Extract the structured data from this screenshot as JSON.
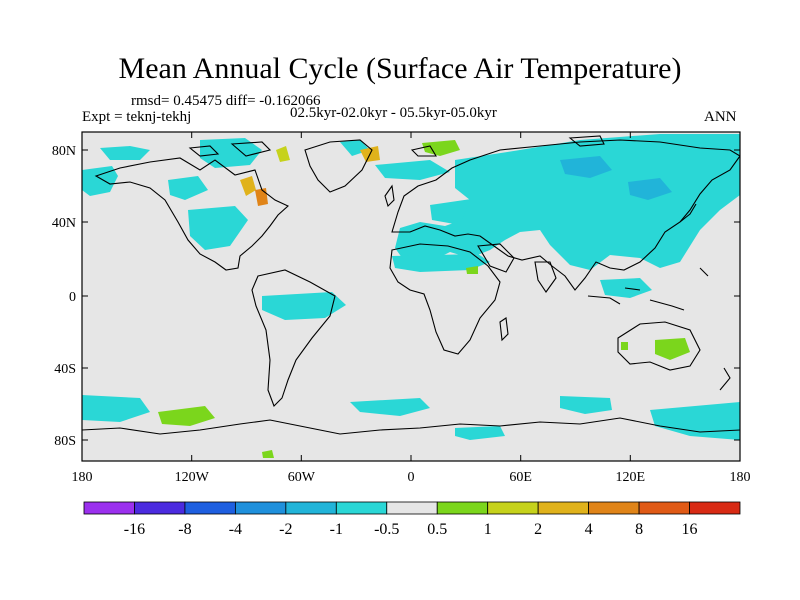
{
  "title": "Mean Annual Cycle (Surface Air Temperature)",
  "stats_text": "rmsd= 0.45475 diff= -0.162066",
  "expt_text": "Expt = teknj-tekhj",
  "period_text": "02.5kyr-02.0kyr - 05.5kyr-05.0kyr",
  "season": "ANN",
  "map": {
    "lat_ticks": [
      "80N",
      "40N",
      "0",
      "40S",
      "80S"
    ],
    "lon_ticks": [
      "180",
      "120W",
      "60W",
      "0",
      "60E",
      "120E",
      "180"
    ],
    "background_color": "#e6e6e6"
  },
  "colorbar": {
    "labels": [
      "-16",
      "-8",
      "-4",
      "-2",
      "-1",
      "-0.5",
      "0.5",
      "1",
      "2",
      "4",
      "8",
      "16"
    ],
    "colors": [
      "#9b30ee",
      "#4b2bdf",
      "#1e5fe0",
      "#1f90dc",
      "#21b4d9",
      "#2ad7d6",
      "#e6e6e6",
      "#7bd61c",
      "#c6d21b",
      "#e0b21b",
      "#e08418",
      "#e05a16",
      "#d82a14"
    ]
  }
}
